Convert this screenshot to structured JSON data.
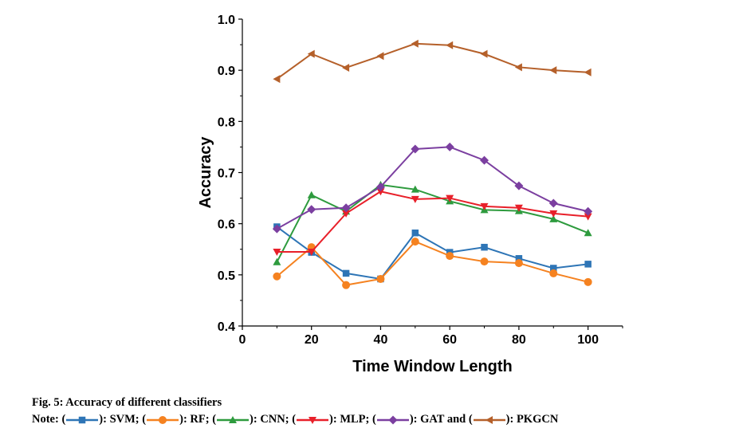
{
  "chart_data": {
    "type": "line",
    "xlabel": "Time Window Length",
    "ylabel": "Accuracy",
    "xlim": [
      0,
      110
    ],
    "ylim": [
      0.4,
      1.0
    ],
    "x_ticks": [
      "0",
      "20",
      "40",
      "60",
      "80",
      "100"
    ],
    "y_ticks": [
      "0.4",
      "0.5",
      "0.6",
      "0.7",
      "0.8",
      "0.9",
      "1.0"
    ],
    "x": [
      10,
      20,
      30,
      40,
      50,
      60,
      70,
      80,
      90,
      100
    ],
    "series": [
      {
        "name": "SVM",
        "color": "#2E75B6",
        "marker": "square",
        "values": [
          0.594,
          0.544,
          0.503,
          0.492,
          0.582,
          0.544,
          0.554,
          0.532,
          0.513,
          0.521
        ]
      },
      {
        "name": "RF",
        "color": "#F58220",
        "marker": "circle",
        "values": [
          0.497,
          0.554,
          0.48,
          0.492,
          0.565,
          0.537,
          0.526,
          0.523,
          0.503,
          0.486
        ]
      },
      {
        "name": "CNN",
        "color": "#2E9B3E",
        "marker": "triangle-up",
        "values": [
          0.525,
          0.656,
          0.624,
          0.676,
          0.667,
          0.644,
          0.627,
          0.625,
          0.609,
          0.582
        ]
      },
      {
        "name": "MLP",
        "color": "#E8202A",
        "marker": "triangle-down",
        "values": [
          0.545,
          0.545,
          0.62,
          0.663,
          0.648,
          0.65,
          0.634,
          0.631,
          0.62,
          0.614
        ]
      },
      {
        "name": "GAT",
        "color": "#7B3FA0",
        "marker": "diamond",
        "values": [
          0.59,
          0.628,
          0.631,
          0.672,
          0.746,
          0.75,
          0.724,
          0.674,
          0.64,
          0.624
        ]
      },
      {
        "name": "PKGCN",
        "color": "#B5602A",
        "marker": "triangle-left",
        "values": [
          0.883,
          0.932,
          0.905,
          0.928,
          0.952,
          0.949,
          0.932,
          0.906,
          0.9,
          0.896
        ]
      }
    ]
  },
  "caption": {
    "title": "Fig. 5: Accuracy of different classifiers",
    "note_prefix": "Note: ",
    "legend": [
      {
        "series": "SVM",
        "open": "(",
        "close": "): SVM; "
      },
      {
        "series": "RF",
        "open": "(",
        "close": "): RF; "
      },
      {
        "series": "CNN",
        "open": "(",
        "close": "): CNN; "
      },
      {
        "series": "MLP",
        "open": "(",
        "close": "): MLP; "
      },
      {
        "series": "GAT",
        "open": "(",
        "close": "): GAT and "
      },
      {
        "series": "PKGCN",
        "open": "(",
        "close": "): PKGCN"
      }
    ]
  }
}
